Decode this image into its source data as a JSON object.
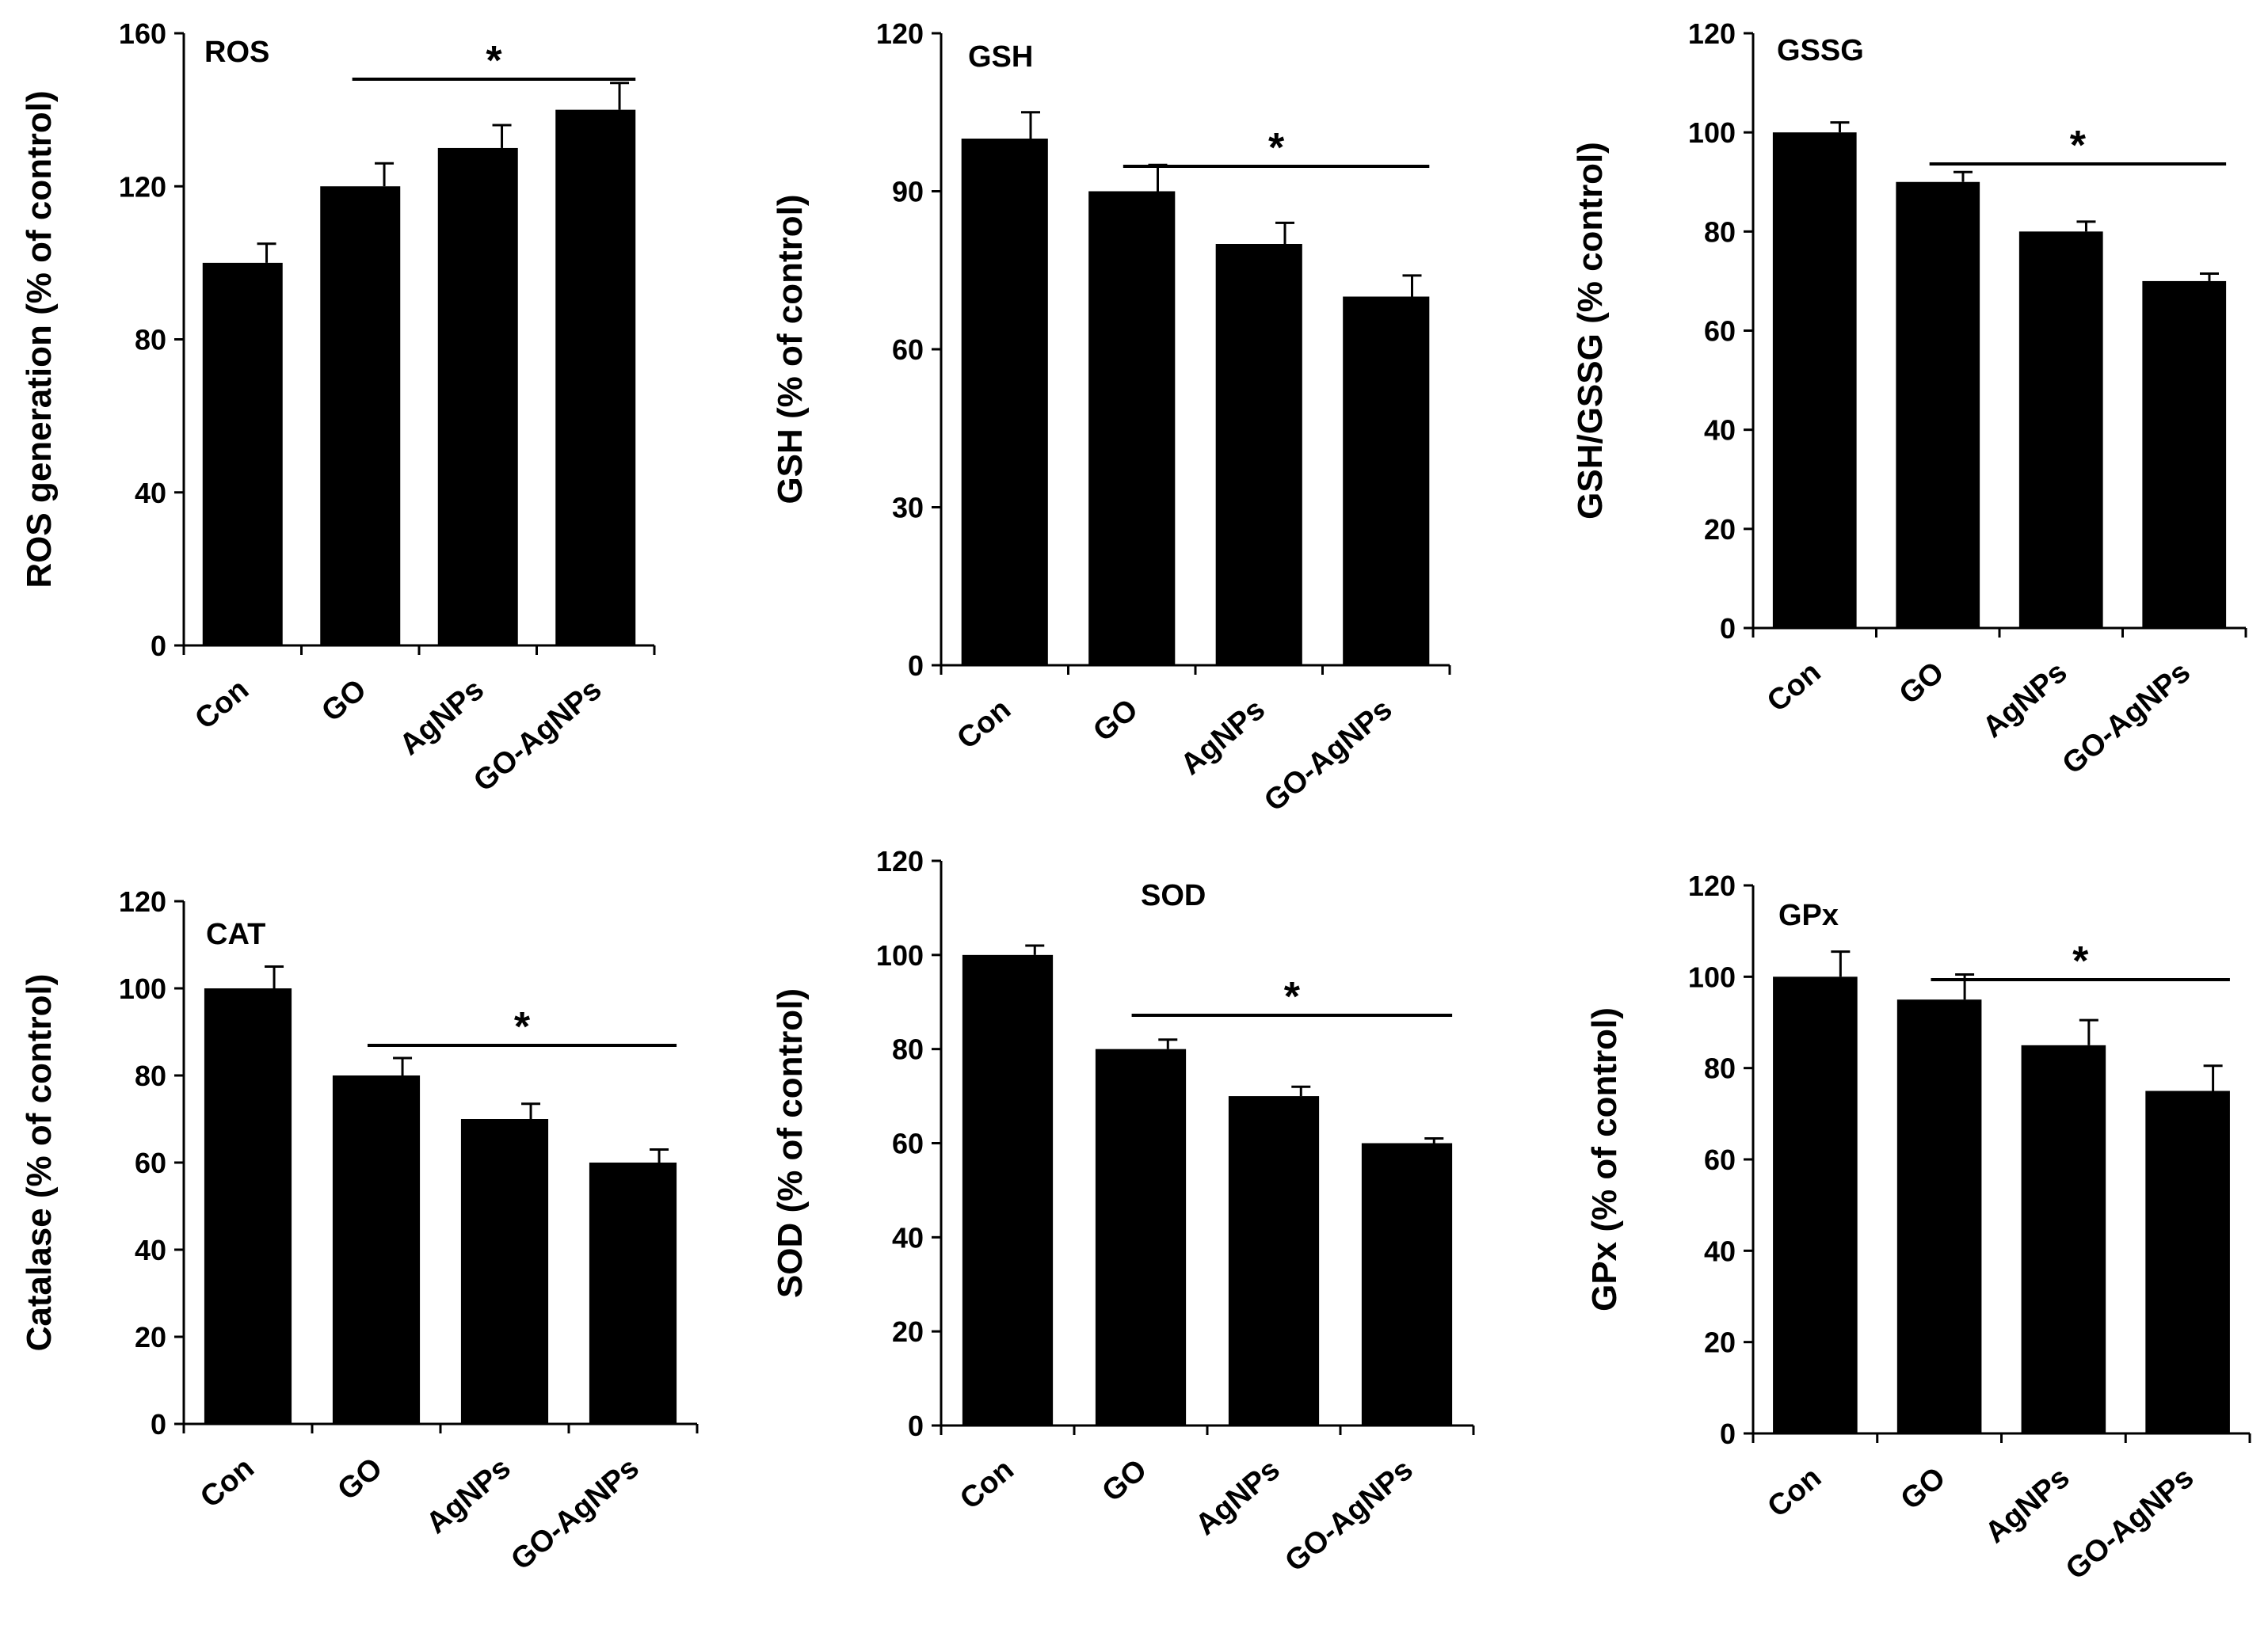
{
  "chart_data": [
    {
      "type": "bar",
      "title": "ROS",
      "ylabel": "ROS generation (% of control)",
      "categories": [
        "Con",
        "GO",
        "AgNPs",
        "GO-AgNPs"
      ],
      "values": [
        100,
        120,
        130,
        140
      ],
      "errors": [
        5,
        6,
        6,
        7
      ],
      "ylim": [
        0,
        160
      ],
      "yticks": [
        0,
        40,
        80,
        120,
        160
      ],
      "significance": {
        "from": 1,
        "to": 3,
        "label": "*"
      }
    },
    {
      "type": "bar",
      "title": "GSH",
      "ylabel": "GSH (% of control)",
      "categories": [
        "Con",
        "GO",
        "AgNPs",
        "GO-AgNPs"
      ],
      "values": [
        100,
        90,
        80,
        70
      ],
      "errors": [
        5,
        5,
        4,
        4
      ],
      "ylim": [
        0,
        120
      ],
      "yticks": [
        0,
        30,
        60,
        90,
        120
      ],
      "significance": {
        "from": 1,
        "to": 3,
        "label": "*"
      }
    },
    {
      "type": "bar",
      "title": "GSSG",
      "ylabel": "GSH/GSSG  (% control)",
      "categories": [
        "Con",
        "GO",
        "AgNPs",
        "GO-AgNPs"
      ],
      "values": [
        100,
        90,
        80,
        70
      ],
      "errors": [
        2,
        2,
        2,
        1.5
      ],
      "ylim": [
        0,
        120
      ],
      "yticks": [
        0,
        20,
        40,
        60,
        80,
        100,
        120
      ],
      "significance": {
        "from": 1,
        "to": 3,
        "label": "*"
      }
    },
    {
      "type": "bar",
      "title": "CAT",
      "ylabel": "Catalase   (% of control)",
      "categories": [
        "Con",
        "GO",
        "AgNPs",
        "GO-AgNPs"
      ],
      "values": [
        100,
        80,
        70,
        60
      ],
      "errors": [
        5,
        4,
        3.5,
        3
      ],
      "ylim": [
        0,
        120
      ],
      "yticks": [
        0,
        20,
        40,
        60,
        80,
        100,
        120
      ],
      "significance": {
        "from": 1,
        "to": 3,
        "label": "*"
      }
    },
    {
      "type": "bar",
      "title": "SOD",
      "ylabel": "SOD  (% of control)",
      "categories": [
        "Con",
        "GO",
        "AgNPs",
        "GO-AgNPs"
      ],
      "values": [
        100,
        80,
        70,
        60
      ],
      "errors": [
        2,
        2,
        2,
        1
      ],
      "ylim": [
        0,
        120
      ],
      "yticks": [
        0,
        20,
        40,
        60,
        80,
        100,
        120
      ],
      "significance": {
        "from": 1,
        "to": 3,
        "label": "*"
      }
    },
    {
      "type": "bar",
      "title": "GPx",
      "ylabel": "GPx (% of control)",
      "categories": [
        "Con",
        "GO",
        "AgNPs",
        "GO-AgNPs"
      ],
      "values": [
        100,
        95,
        85,
        75
      ],
      "errors": [
        5.5,
        5.5,
        5.5,
        5.5
      ],
      "ylim": [
        0,
        120
      ],
      "yticks": [
        0,
        20,
        40,
        60,
        80,
        100,
        120
      ],
      "significance": {
        "from": 1,
        "to": 3,
        "label": "*"
      }
    }
  ]
}
